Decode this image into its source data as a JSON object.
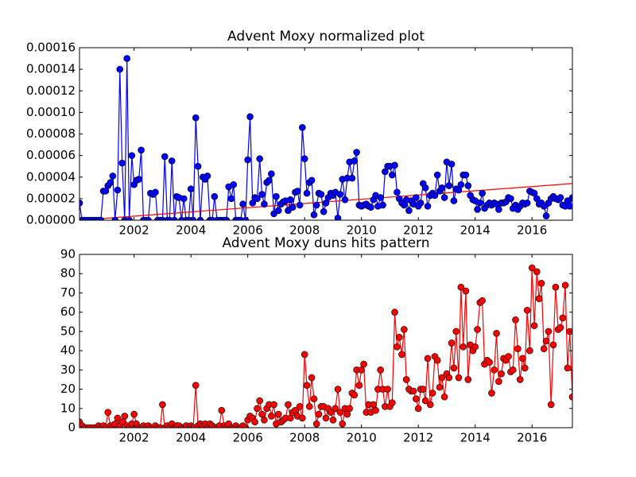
{
  "chart_data": [
    {
      "type": "line",
      "title": "Advent Moxy normalized plot",
      "xlim": [
        2000.08,
        2017.42
      ],
      "xticks": [
        2002,
        2004,
        2006,
        2008,
        2010,
        2012,
        2014,
        2016
      ],
      "ylim": [
        0,
        0.00016
      ],
      "yticks": [
        {
          "value": 0,
          "label": "0.00000"
        },
        {
          "value": 2e-05,
          "label": "0.00002"
        },
        {
          "value": 4e-05,
          "label": "0.00004"
        },
        {
          "value": 6e-05,
          "label": "0.00006"
        },
        {
          "value": 8e-05,
          "label": "0.00008"
        },
        {
          "value": 0.0001,
          "label": "0.00010"
        },
        {
          "value": 0.00012,
          "label": "0.00012"
        },
        {
          "value": 0.00014,
          "label": "0.00014"
        },
        {
          "value": 0.00016,
          "label": "0.00016"
        }
      ],
      "series": [
        {
          "color": "#0000ff",
          "marker": true,
          "x": [
            2000.08,
            2000.17,
            2000.25,
            2000.33,
            2000.42,
            2000.5,
            2000.58,
            2000.67,
            2000.75,
            2000.83,
            2000.92,
            2001.0,
            2001.08,
            2001.17,
            2001.25,
            2001.33,
            2001.42,
            2001.5,
            2001.58,
            2001.67,
            2001.75,
            2001.83,
            2001.92,
            2002.0,
            2002.08,
            2002.17,
            2002.25,
            2002.33,
            2002.42,
            2002.5,
            2002.58,
            2002.67,
            2002.75,
            2002.83,
            2002.92,
            2003.0,
            2003.08,
            2003.17,
            2003.25,
            2003.33,
            2003.42,
            2003.5,
            2003.58,
            2003.67,
            2003.75,
            2003.83,
            2003.92,
            2004.0,
            2004.08,
            2004.17,
            2004.25,
            2004.33,
            2004.42,
            2004.5,
            2004.58,
            2004.67,
            2004.75,
            2004.83,
            2004.92,
            2005.0,
            2005.08,
            2005.17,
            2005.25,
            2005.33,
            2005.42,
            2005.5,
            2005.58,
            2005.67,
            2005.75,
            2005.83,
            2005.92,
            2006.0,
            2006.08,
            2006.17,
            2006.25,
            2006.33,
            2006.42,
            2006.5,
            2006.58,
            2006.67,
            2006.75,
            2006.83,
            2006.92,
            2007.0,
            2007.08,
            2007.17,
            2007.25,
            2007.33,
            2007.42,
            2007.5,
            2007.58,
            2007.67,
            2007.75,
            2007.83,
            2007.92,
            2008.0,
            2008.08,
            2008.17,
            2008.25,
            2008.33,
            2008.42,
            2008.5,
            2008.58,
            2008.67,
            2008.75,
            2008.83,
            2008.92,
            2009.0,
            2009.08,
            2009.17,
            2009.25,
            2009.33,
            2009.42,
            2009.5,
            2009.58,
            2009.67,
            2009.75,
            2009.83,
            2009.92,
            2010.0,
            2010.08,
            2010.17,
            2010.25,
            2010.33,
            2010.42,
            2010.5,
            2010.58,
            2010.67,
            2010.75,
            2010.83,
            2010.92,
            2011.0,
            2011.08,
            2011.17,
            2011.25,
            2011.33,
            2011.42,
            2011.5,
            2011.58,
            2011.67,
            2011.75,
            2011.83,
            2011.92,
            2012.0,
            2012.08,
            2012.17,
            2012.25,
            2012.33,
            2012.42,
            2012.5,
            2012.58,
            2012.67,
            2012.75,
            2012.83,
            2012.92,
            2013.0,
            2013.08,
            2013.17,
            2013.25,
            2013.33,
            2013.42,
            2013.5,
            2013.58,
            2013.67,
            2013.75,
            2013.83,
            2013.92,
            2014.0,
            2014.08,
            2014.17,
            2014.25,
            2014.33,
            2014.42,
            2014.5,
            2014.58,
            2014.67,
            2014.75,
            2014.83,
            2014.92,
            2015.0,
            2015.08,
            2015.17,
            2015.25,
            2015.33,
            2015.42,
            2015.5,
            2015.58,
            2015.67,
            2015.75,
            2015.83,
            2015.92,
            2016.0,
            2016.08,
            2016.17,
            2016.25,
            2016.33,
            2016.42,
            2016.5,
            2016.58,
            2016.67,
            2016.75,
            2016.83,
            2016.92,
            2017.0,
            2017.08,
            2017.17,
            2017.25,
            2017.33,
            2017.42
          ],
          "values": [
            1.6e-05,
            0,
            0,
            0,
            0,
            0,
            0,
            0,
            0,
            0,
            2.7e-05,
            2.7e-05,
            3.2e-05,
            3.5e-05,
            4.1e-05,
            0,
            2.8e-05,
            0.00014,
            5.3e-05,
            0,
            0.00015,
            0,
            6e-05,
            3.3e-05,
            3.7e-05,
            3.8e-05,
            6.5e-05,
            0,
            0,
            0,
            2.5e-05,
            2.4e-05,
            2.6e-05,
            0,
            0,
            0,
            5.9e-05,
            0,
            0,
            5.5e-05,
            0,
            2.2e-05,
            2.1e-05,
            0,
            2e-05,
            0,
            0,
            2.9e-05,
            0,
            9.5e-05,
            5e-05,
            0,
            4e-05,
            3.8e-05,
            4.1e-05,
            0,
            0,
            2.2e-05,
            0,
            0,
            0,
            0,
            0,
            3.1e-05,
            2e-05,
            3.3e-05,
            0,
            0,
            0,
            1.5e-05,
            0,
            5.6e-05,
            9.6e-05,
            1.6e-05,
            2.1e-05,
            2e-05,
            5.7e-05,
            2.4e-05,
            1.5e-05,
            3.5e-05,
            3.7e-05,
            4.3e-05,
            6e-06,
            2.2e-05,
            9e-06,
            1.5e-05,
            1.7e-05,
            1.8e-05,
            9e-06,
            1.9e-05,
            1.2e-05,
            2.6e-05,
            2.7e-05,
            1.4e-05,
            8.6e-05,
            5.7e-05,
            2.5e-05,
            3.5e-05,
            3.7e-05,
            5e-06,
            1.4e-05,
            2.5e-05,
            2.4e-05,
            8e-06,
            1.6e-05,
            2.1e-05,
            2.5e-05,
            2.3e-05,
            2.6e-05,
            2e-06,
            2.4e-05,
            3.8e-05,
            1.9e-05,
            3.9e-05,
            5.4e-05,
            3.9e-05,
            5.5e-05,
            6.3e-05,
            1.4e-05,
            1.3e-05,
            1.4e-05,
            1.5e-05,
            1.3e-05,
            1.2e-05,
            1.9e-05,
            2.3e-05,
            1.3e-05,
            2.1e-05,
            1.4e-05,
            4.5e-05,
            5e-05,
            5e-05,
            4.2e-05,
            5.1e-05,
            2.6e-05,
            2e-05,
            1.6e-05,
            1.4e-05,
            1.9e-05,
            9e-06,
            1.8e-05,
            1.5e-05,
            2.1e-05,
            1.3e-05,
            1.6e-05,
            3.4e-05,
            3e-05,
            1.3e-05,
            2.3e-05,
            2.5e-05,
            2.3e-05,
            4.2e-05,
            2.7e-05,
            3e-05,
            2.1e-05,
            5.4e-05,
            3.2e-05,
            5.2e-05,
            1.8e-05,
            2.9e-05,
            2.8e-05,
            3.3e-05,
            4.2e-05,
            4.2e-05,
            3.2e-05,
            2.3e-05,
            1.9e-05,
            1.8e-05,
            1e-05,
            1.6e-05,
            2.5e-05,
            1.1e-05,
            1.4e-05,
            1.6e-05,
            1.4e-05,
            1.6e-05,
            1.5e-05,
            1e-05,
            1.6e-05,
            1.6e-05,
            1.7e-05,
            2.1e-05,
            2e-05,
            1.1e-05,
            1.4e-05,
            1e-05,
            1.3e-05,
            1.6e-05,
            1.5e-05,
            1.6e-05,
            2.7e-05,
            2.6e-05,
            2.5e-05,
            2e-05,
            1.5e-05,
            1.6e-05,
            1.3e-05,
            4e-06,
            1.6e-05,
            2e-05,
            2.2e-05,
            2e-05,
            1.9e-05,
            2.1e-05,
            1.4e-05,
            1.3e-05,
            1.8e-05,
            1.3e-05,
            2.1e-05
          ]
        },
        {
          "color": "#ff0000",
          "marker": false,
          "x": [
            2000.08,
            2017.42
          ],
          "values": [
            0,
            3.4e-05
          ]
        }
      ]
    },
    {
      "type": "line",
      "title": "Advent Moxy duns hits pattern",
      "xlim": [
        2000.08,
        2017.42
      ],
      "xticks": [
        2002,
        2004,
        2006,
        2008,
        2010,
        2012,
        2014,
        2016
      ],
      "ylim": [
        0,
        90
      ],
      "yticks": [
        0,
        10,
        20,
        30,
        40,
        50,
        60,
        70,
        80,
        90
      ],
      "series": [
        {
          "color": "#ff0000",
          "marker": true,
          "x": [
            2000.08,
            2000.17,
            2000.25,
            2000.33,
            2000.42,
            2000.5,
            2000.58,
            2000.67,
            2000.75,
            2000.83,
            2000.92,
            2001.0,
            2001.08,
            2001.17,
            2001.25,
            2001.33,
            2001.42,
            2001.5,
            2001.58,
            2001.67,
            2001.75,
            2001.83,
            2001.92,
            2002.0,
            2002.08,
            2002.17,
            2002.25,
            2002.33,
            2002.42,
            2002.5,
            2002.58,
            2002.67,
            2002.75,
            2002.83,
            2002.92,
            2003.0,
            2003.08,
            2003.17,
            2003.25,
            2003.33,
            2003.42,
            2003.5,
            2003.58,
            2003.67,
            2003.75,
            2003.83,
            2003.92,
            2004.0,
            2004.08,
            2004.17,
            2004.25,
            2004.33,
            2004.42,
            2004.5,
            2004.58,
            2004.67,
            2004.75,
            2004.83,
            2004.92,
            2005.0,
            2005.08,
            2005.17,
            2005.25,
            2005.33,
            2005.42,
            2005.5,
            2005.58,
            2005.67,
            2005.75,
            2005.83,
            2005.92,
            2006.0,
            2006.08,
            2006.17,
            2006.25,
            2006.33,
            2006.42,
            2006.5,
            2006.58,
            2006.67,
            2006.75,
            2006.83,
            2006.92,
            2007.0,
            2007.08,
            2007.17,
            2007.25,
            2007.33,
            2007.42,
            2007.5,
            2007.58,
            2007.67,
            2007.75,
            2007.83,
            2007.92,
            2008.0,
            2008.08,
            2008.17,
            2008.25,
            2008.33,
            2008.42,
            2008.5,
            2008.58,
            2008.67,
            2008.75,
            2008.83,
            2008.92,
            2009.0,
            2009.08,
            2009.17,
            2009.25,
            2009.33,
            2009.42,
            2009.5,
            2009.58,
            2009.67,
            2009.75,
            2009.83,
            2009.92,
            2010.0,
            2010.08,
            2010.17,
            2010.25,
            2010.33,
            2010.42,
            2010.5,
            2010.58,
            2010.67,
            2010.75,
            2010.83,
            2010.92,
            2011.0,
            2011.08,
            2011.17,
            2011.25,
            2011.33,
            2011.42,
            2011.5,
            2011.58,
            2011.67,
            2011.75,
            2011.83,
            2011.92,
            2012.0,
            2012.08,
            2012.17,
            2012.25,
            2012.33,
            2012.42,
            2012.5,
            2012.58,
            2012.67,
            2012.75,
            2012.83,
            2012.92,
            2013.0,
            2013.08,
            2013.17,
            2013.25,
            2013.33,
            2013.42,
            2013.5,
            2013.58,
            2013.67,
            2013.75,
            2013.83,
            2013.92,
            2014.0,
            2014.08,
            2014.17,
            2014.25,
            2014.33,
            2014.42,
            2014.5,
            2014.58,
            2014.67,
            2014.75,
            2014.83,
            2014.92,
            2015.0,
            2015.08,
            2015.17,
            2015.25,
            2015.33,
            2015.42,
            2015.5,
            2015.58,
            2015.67,
            2015.75,
            2015.83,
            2015.92,
            2016.0,
            2016.08,
            2016.17,
            2016.25,
            2016.33,
            2016.42,
            2016.5,
            2016.58,
            2016.67,
            2016.75,
            2016.83,
            2016.92,
            2017.0,
            2017.08,
            2017.17,
            2017.25,
            2017.33,
            2017.42
          ],
          "values": [
            3,
            1,
            0,
            0,
            0,
            0,
            0,
            0,
            1,
            0,
            1,
            0,
            8,
            1,
            0,
            2,
            5,
            1,
            3,
            6,
            1,
            0,
            2,
            7,
            2,
            0,
            0,
            1,
            0,
            1,
            0,
            0,
            1,
            0,
            0,
            12,
            0,
            1,
            0,
            2,
            0,
            1,
            1,
            0,
            0,
            1,
            0,
            1,
            0,
            22,
            1,
            2,
            1,
            2,
            0,
            2,
            1,
            0,
            0,
            1,
            9,
            1,
            0,
            2,
            0,
            0,
            1,
            0,
            0,
            1,
            0,
            4,
            6,
            5,
            3,
            10,
            14,
            7,
            4,
            10,
            12,
            6,
            12,
            2,
            7,
            3,
            4,
            5,
            12,
            5,
            8,
            9,
            6,
            11,
            5,
            38,
            22,
            11,
            26,
            15,
            2,
            7,
            11,
            11,
            5,
            10,
            8,
            4,
            10,
            20,
            8,
            2,
            10,
            7,
            10,
            18,
            17,
            30,
            22,
            30,
            33,
            8,
            12,
            8,
            12,
            9,
            20,
            30,
            20,
            11,
            20,
            11,
            13,
            60,
            42,
            47,
            38,
            51,
            25,
            20,
            19,
            19,
            15,
            10,
            20,
            20,
            14,
            36,
            12,
            18,
            37,
            35,
            21,
            26,
            16,
            28,
            26,
            44,
            31,
            50,
            26,
            73,
            42,
            71,
            25,
            43,
            40,
            42,
            51,
            65,
            66,
            33,
            35,
            34,
            18,
            30,
            49,
            24,
            28,
            36,
            35,
            37,
            29,
            30,
            56,
            41,
            25,
            36,
            31,
            61,
            40,
            83,
            53,
            81,
            67,
            75,
            41,
            45,
            50,
            12,
            43,
            73,
            51,
            52,
            57,
            74,
            31,
            50,
            16
          ]
        }
      ]
    }
  ]
}
